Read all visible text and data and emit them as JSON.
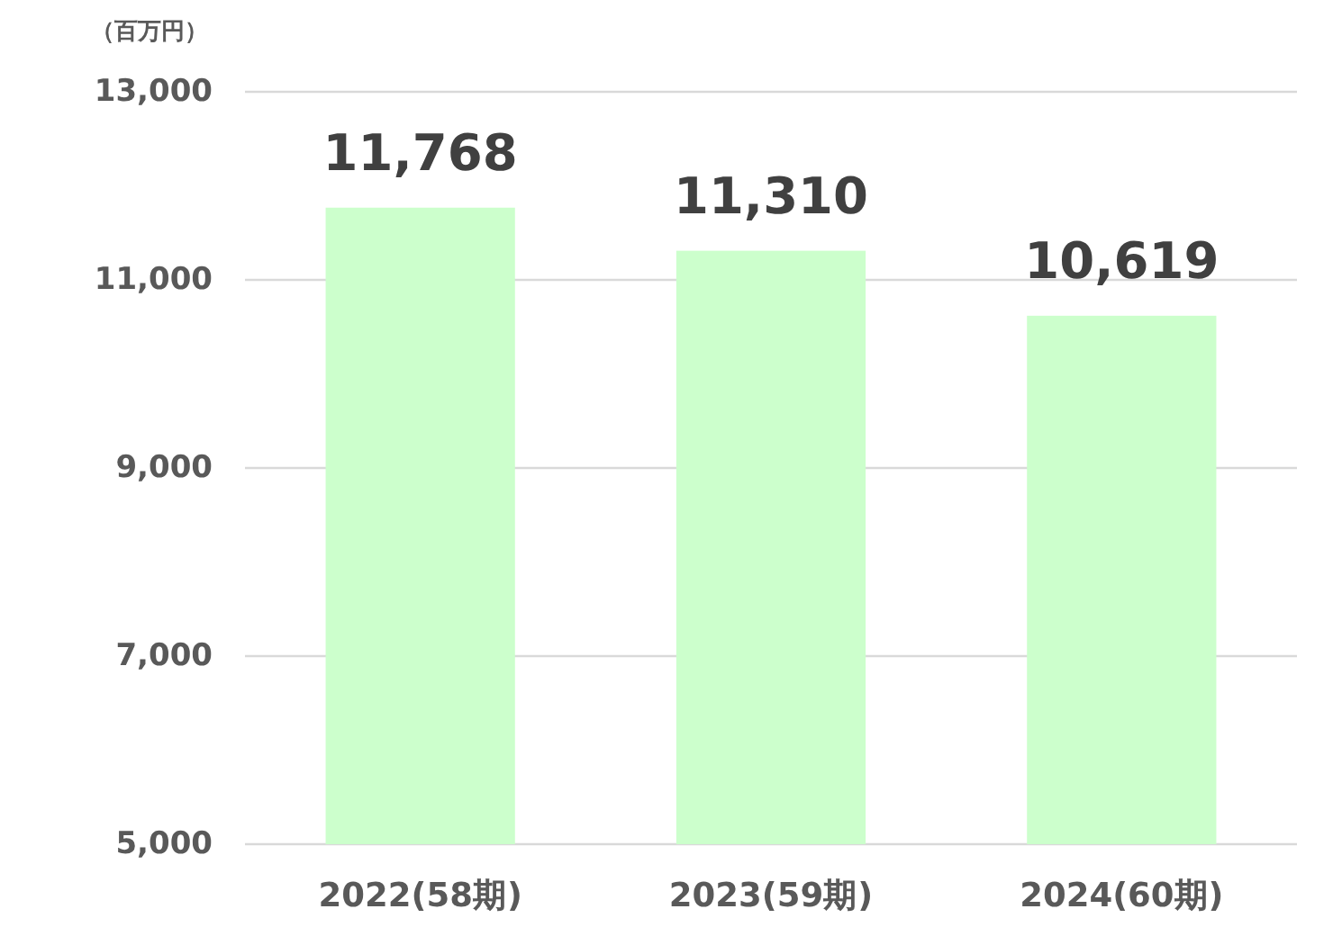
{
  "chart_data": {
    "type": "bar",
    "ylabel": "（百万円）",
    "categories": [
      "2022(58期)",
      "2023(59期)",
      "2024(60期)"
    ],
    "values": [
      11768,
      11310,
      10619
    ],
    "value_labels": [
      "11,768",
      "11,310",
      "10,619"
    ],
    "color": "#ccffcc",
    "ylim": [
      5000,
      13000
    ],
    "yticks": [
      {
        "value": 5000,
        "label": "5,000"
      },
      {
        "value": 7000,
        "label": "7,000"
      },
      {
        "value": 9000,
        "label": "9,000"
      },
      {
        "value": 11000,
        "label": "11,000"
      },
      {
        "value": 13000,
        "label": "13,000"
      }
    ],
    "grid": "y"
  }
}
